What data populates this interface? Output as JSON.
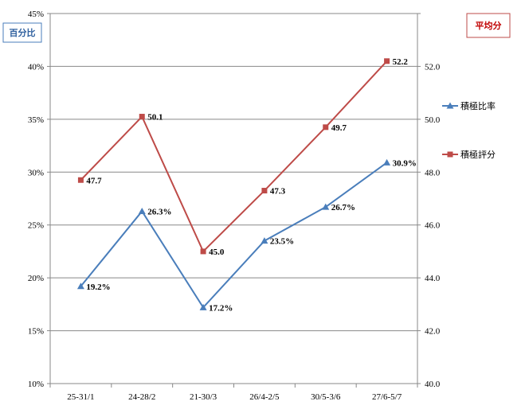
{
  "chart_data": {
    "type": "line",
    "categories": [
      "25-31/1",
      "24-28/2",
      "21-30/3",
      "26/4-2/5",
      "30/5-3/6",
      "27/6-5/7"
    ],
    "left_axis": {
      "label": "百分比",
      "range": [
        10,
        45
      ],
      "step": 5,
      "ticks": [
        "10%",
        "15%",
        "20%",
        "25%",
        "30%",
        "35%",
        "40%",
        "45%"
      ]
    },
    "right_axis": {
      "label": "平均分",
      "range": [
        40,
        54
      ],
      "step": 2,
      "ticks": [
        "40.0",
        "42.0",
        "44.0",
        "46.0",
        "48.0",
        "50.0",
        "52.0",
        ""
      ]
    },
    "grid": true,
    "legend_position": "right",
    "series": [
      {
        "name": "積極比率",
        "axis": "left",
        "values": [
          19.2,
          26.3,
          17.2,
          23.5,
          26.7,
          30.9
        ],
        "labels": [
          "19.2%",
          "26.3%",
          "17.2%",
          "23.5%",
          "26.7%",
          "30.9%"
        ],
        "color": "#4a7ebb",
        "marker": "triangle"
      },
      {
        "name": "積極評分",
        "axis": "right",
        "values": [
          47.7,
          50.1,
          45.0,
          47.3,
          49.7,
          52.2
        ],
        "labels": [
          "47.7",
          "50.1",
          "45.0",
          "47.3",
          "49.7",
          "52.2"
        ],
        "color": "#be4b48",
        "marker": "square"
      }
    ]
  },
  "colors": {
    "left_label": "#2e5f9e",
    "right_label": "#c00000",
    "grid": "#888888",
    "axis": "#888888"
  }
}
